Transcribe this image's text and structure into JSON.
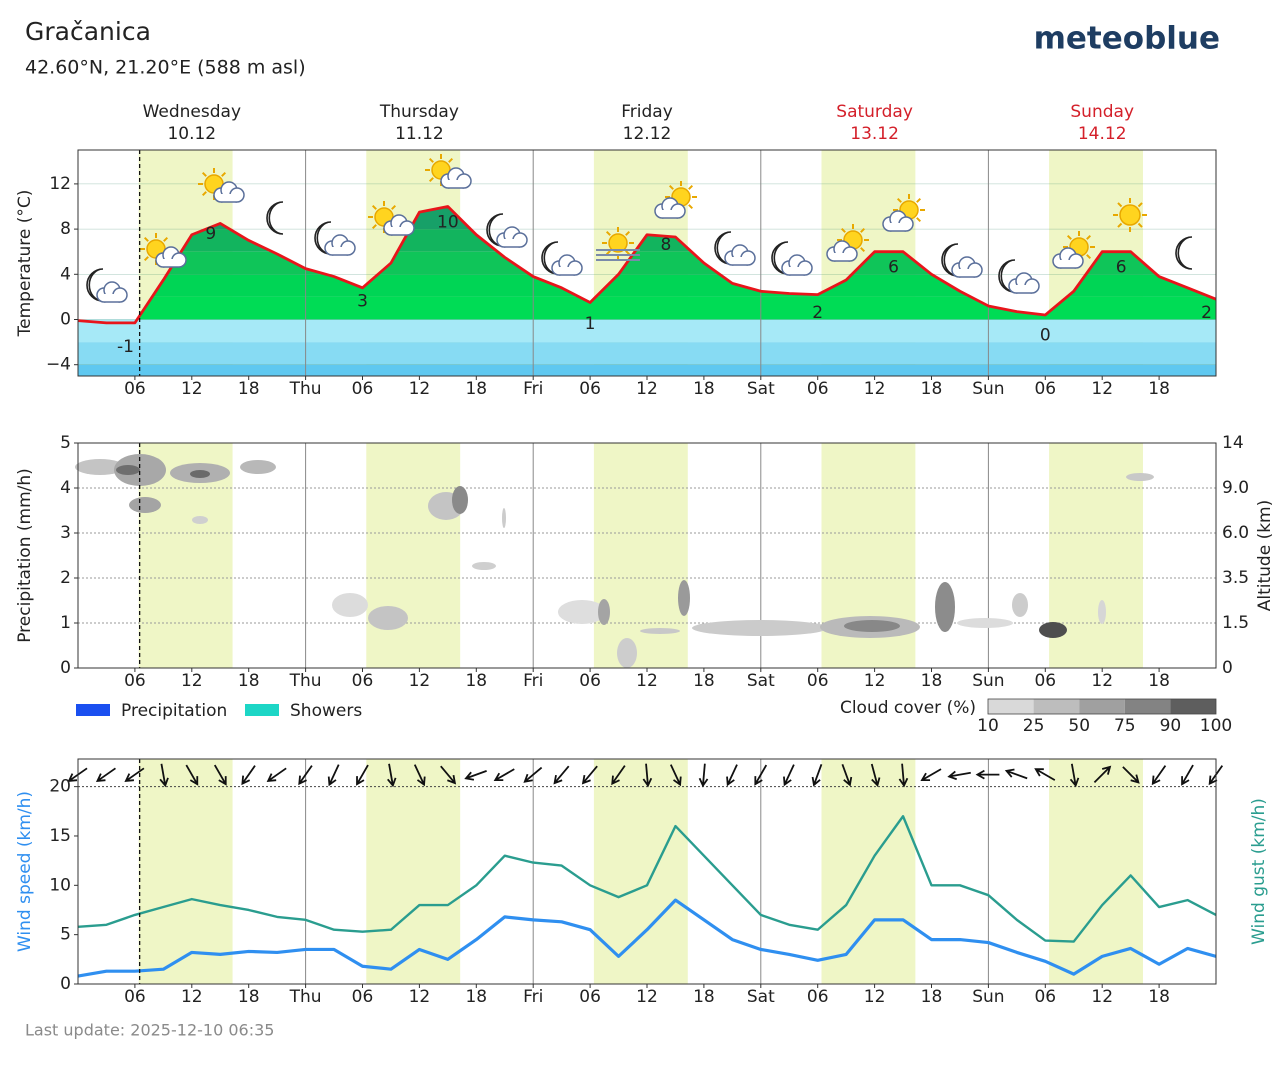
{
  "title": "Gračanica",
  "subtitle": "42.60°N, 21.20°E (588 m asl)",
  "brand": "meteoblue",
  "footer": "Last update: 2025-12-10 06:35",
  "days": [
    {
      "name": "Wednesday",
      "date": "10.12",
      "color": "#222222"
    },
    {
      "name": "Thursday",
      "date": "11.12",
      "color": "#222222"
    },
    {
      "name": "Friday",
      "date": "12.12",
      "color": "#222222"
    },
    {
      "name": "Saturday",
      "date": "13.12",
      "color": "#d4202a"
    },
    {
      "name": "Sunday",
      "date": "14.12",
      "color": "#d4202a"
    }
  ],
  "chart_data": [
    {
      "type": "area",
      "y_label": "Temperature (°C)",
      "x": [
        0,
        3,
        6,
        9,
        12,
        15,
        18,
        21,
        24,
        27,
        30,
        33,
        36,
        39,
        42,
        45,
        48,
        51,
        54,
        57,
        60,
        63,
        66,
        69,
        72,
        75,
        78,
        81,
        84,
        87,
        90,
        93,
        96,
        99,
        102,
        105,
        108,
        111,
        114,
        117,
        120
      ],
      "xlim": [
        0,
        120
      ],
      "xticks": [
        {
          "value": 6,
          "label": "06"
        },
        {
          "value": 12,
          "label": "12"
        },
        {
          "value": 18,
          "label": "18"
        },
        {
          "value": 24,
          "label": "Thu"
        },
        {
          "value": 30,
          "label": "06"
        },
        {
          "value": 36,
          "label": "12"
        },
        {
          "value": 42,
          "label": "18"
        },
        {
          "value": 48,
          "label": "Fri"
        },
        {
          "value": 54,
          "label": "06"
        },
        {
          "value": 60,
          "label": "12"
        },
        {
          "value": 66,
          "label": "18"
        },
        {
          "value": 72,
          "label": "Sat"
        },
        {
          "value": 78,
          "label": "06"
        },
        {
          "value": 84,
          "label": "12"
        },
        {
          "value": 90,
          "label": "18"
        },
        {
          "value": 96,
          "label": "Sun"
        },
        {
          "value": 102,
          "label": "06"
        },
        {
          "value": 108,
          "label": "12"
        },
        {
          "value": 114,
          "label": "18"
        }
      ],
      "ylim": [
        -5,
        15
      ],
      "yticks": [
        {
          "value": -4,
          "label": "−4"
        },
        0,
        4,
        8,
        12
      ],
      "grid": true,
      "color": "#e8151b",
      "values": [
        -0.1,
        -0.3,
        -0.3,
        3.5,
        7.5,
        8.5,
        7,
        5.8,
        4.5,
        3.8,
        2.8,
        5,
        9.5,
        10,
        7.5,
        5.5,
        3.8,
        2.8,
        1.5,
        4,
        7.5,
        7.3,
        5,
        3.2,
        2.5,
        2.3,
        2.2,
        3.5,
        6,
        6,
        4,
        2.5,
        1.2,
        0.7,
        0.4,
        2.5,
        6,
        6,
        3.8,
        2.8,
        1.8
      ],
      "extremes": {
        "x": [
          5,
          14,
          30,
          39,
          54,
          62,
          78,
          86,
          102,
          110,
          119
        ],
        "values": [
          -1,
          9,
          3,
          10,
          1,
          8,
          2,
          6,
          0,
          6,
          2
        ]
      }
    },
    {
      "type": "bar",
      "y_label": "Precipitation (mm/h)",
      "y2_label": "Altitude (km)",
      "x": [
        0,
        3,
        6,
        9,
        12,
        15,
        18,
        21,
        24,
        27,
        30,
        33,
        36,
        39,
        42,
        45,
        48,
        51,
        54,
        57,
        60,
        63,
        66,
        69,
        72,
        75,
        78,
        81,
        84,
        87,
        90,
        93,
        96,
        99,
        102,
        105,
        108,
        111,
        114,
        117,
        120
      ],
      "xlim": [
        0,
        120
      ],
      "xticks": [
        {
          "value": 6,
          "label": "06"
        },
        {
          "value": 12,
          "label": "12"
        },
        {
          "value": 18,
          "label": "18"
        },
        {
          "value": 24,
          "label": "Thu"
        },
        {
          "value": 30,
          "label": "06"
        },
        {
          "value": 36,
          "label": "12"
        },
        {
          "value": 42,
          "label": "18"
        },
        {
          "value": 48,
          "label": "Fri"
        },
        {
          "value": 54,
          "label": "06"
        },
        {
          "value": 60,
          "label": "12"
        },
        {
          "value": 66,
          "label": "18"
        },
        {
          "value": 72,
          "label": "Sat"
        },
        {
          "value": 78,
          "label": "06"
        },
        {
          "value": 84,
          "label": "12"
        },
        {
          "value": 90,
          "label": "18"
        },
        {
          "value": 96,
          "label": "Sun"
        },
        {
          "value": 102,
          "label": "06"
        },
        {
          "value": 108,
          "label": "12"
        },
        {
          "value": 114,
          "label": "18"
        }
      ],
      "ylim": [
        0,
        5
      ],
      "yticks": [
        0,
        1,
        2,
        3,
        4,
        5
      ],
      "y2lim": [
        0,
        14
      ],
      "y2ticks": [
        0,
        1.5,
        3.5,
        {
          "value": 6,
          "label": "6.0"
        },
        {
          "value": 9,
          "label": "9.0"
        },
        14
      ],
      "grid": true,
      "series": [
        {
          "name": "Precipitation",
          "color": "#1a4ff0",
          "values": [
            0,
            0,
            0,
            0,
            0,
            0,
            0,
            0,
            0,
            0,
            0,
            0,
            0,
            0,
            0,
            0,
            0,
            0,
            0,
            0,
            0,
            0,
            0,
            0,
            0,
            0,
            0,
            0,
            0,
            0,
            0,
            0,
            0,
            0,
            0,
            0,
            0,
            0,
            0,
            0,
            0
          ]
        },
        {
          "name": "Showers",
          "color": "#1dd6c6",
          "values": [
            0,
            0,
            0,
            0,
            0,
            0,
            0,
            0,
            0,
            0,
            0,
            0,
            0,
            0,
            0,
            0,
            0,
            0,
            0,
            0,
            0,
            0,
            0,
            0,
            0,
            0,
            0,
            0,
            0,
            0,
            0,
            0,
            0,
            0,
            0,
            0,
            0,
            0,
            0,
            0,
            0
          ]
        }
      ],
      "cloud_cover": {
        "label": "Cloud cover (%)",
        "levels": [
          10,
          25,
          50,
          75,
          90,
          100
        ],
        "colors": [
          "#d9d9d9",
          "#bdbdbd",
          "#a0a0a0",
          "#838383",
          "#5e5e5e"
        ]
      }
    },
    {
      "type": "line",
      "y_label": "Wind speed (km/h)",
      "y2_label": "Wind gust (km/h)",
      "x": [
        0,
        3,
        6,
        9,
        12,
        15,
        18,
        21,
        24,
        27,
        30,
        33,
        36,
        39,
        42,
        45,
        48,
        51,
        54,
        57,
        60,
        63,
        66,
        69,
        72,
        75,
        78,
        81,
        84,
        87,
        90,
        93,
        96,
        99,
        102,
        105,
        108,
        111,
        114,
        117,
        120
      ],
      "xlim": [
        0,
        120
      ],
      "xticks": [
        {
          "value": 6,
          "label": "06"
        },
        {
          "value": 12,
          "label": "12"
        },
        {
          "value": 18,
          "label": "18"
        },
        {
          "value": 24,
          "label": "Thu"
        },
        {
          "value": 30,
          "label": "06"
        },
        {
          "value": 36,
          "label": "12"
        },
        {
          "value": 42,
          "label": "18"
        },
        {
          "value": 48,
          "label": "Fri"
        },
        {
          "value": 54,
          "label": "06"
        },
        {
          "value": 60,
          "label": "12"
        },
        {
          "value": 66,
          "label": "18"
        },
        {
          "value": 72,
          "label": "Sat"
        },
        {
          "value": 78,
          "label": "06"
        },
        {
          "value": 84,
          "label": "12"
        },
        {
          "value": 90,
          "label": "18"
        },
        {
          "value": 96,
          "label": "Sun"
        },
        {
          "value": 102,
          "label": "06"
        },
        {
          "value": 108,
          "label": "12"
        },
        {
          "value": 114,
          "label": "18"
        }
      ],
      "ylim": [
        0,
        22.8
      ],
      "yticks": [
        0,
        5,
        10,
        15,
        20
      ],
      "y2lim": [
        0,
        22.8
      ],
      "grid": false,
      "series": [
        {
          "color": "#2f8ff0",
          "values": [
            0.8,
            1.3,
            1.3,
            1.5,
            3.2,
            3.0,
            3.3,
            3.2,
            3.5,
            3.5,
            1.8,
            1.5,
            3.5,
            2.5,
            4.5,
            6.8,
            6.5,
            6.3,
            5.5,
            2.8,
            5.5,
            8.5,
            6.5,
            4.5,
            3.5,
            3.0,
            2.4,
            3.0,
            6.5,
            6.5,
            4.5,
            4.5,
            4.2,
            3.2,
            2.3,
            1.0,
            2.8,
            3.6,
            2.0,
            3.6,
            2.8
          ]
        },
        {
          "color": "#2a9d8f",
          "axis": "y2",
          "values": [
            5.8,
            6,
            7,
            7.8,
            8.6,
            8,
            7.5,
            6.8,
            6.5,
            5.5,
            5.3,
            5.5,
            8,
            8,
            10,
            13,
            12.3,
            12,
            10,
            8.8,
            10,
            16,
            13,
            10,
            7,
            6,
            5.5,
            8,
            13,
            17,
            10,
            10,
            9,
            6.5,
            4.4,
            4.3,
            8,
            11,
            7.8,
            8.5,
            7
          ]
        }
      ],
      "wind_direction": [
        235,
        235,
        235,
        170,
        150,
        150,
        215,
        235,
        215,
        205,
        210,
        170,
        155,
        140,
        250,
        240,
        230,
        220,
        220,
        215,
        175,
        155,
        185,
        205,
        210,
        205,
        200,
        160,
        165,
        175,
        240,
        260,
        270,
        290,
        300,
        170,
        45,
        135,
        215,
        210,
        215
      ]
    }
  ]
}
